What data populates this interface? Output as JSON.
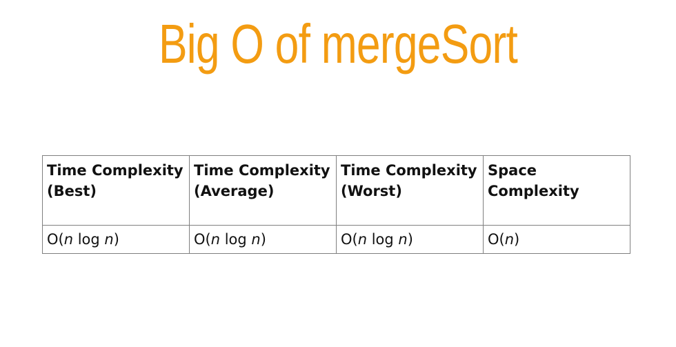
{
  "slide": {
    "title": "Big O of mergeSort"
  },
  "table": {
    "headers": [
      "Time Complexity (Best)",
      "Time Complexity (Average)",
      "Time Complexity (Worst)",
      "Space Complexity"
    ],
    "rows": [
      [
        {
          "prefix": "O(",
          "var1": "n",
          "mid": " log ",
          "var2": "n",
          "suffix": ")"
        },
        {
          "prefix": "O(",
          "var1": "n",
          "mid": " log ",
          "var2": "n",
          "suffix": ")"
        },
        {
          "prefix": "O(",
          "var1": "n",
          "mid": " log ",
          "var2": "n",
          "suffix": ")"
        },
        {
          "prefix": "O(",
          "var1": "n",
          "mid": "",
          "var2": "",
          "suffix": ")"
        }
      ]
    ]
  },
  "colors": {
    "title": "#f39c12",
    "border": "#7f7f7f",
    "text": "#111111"
  }
}
